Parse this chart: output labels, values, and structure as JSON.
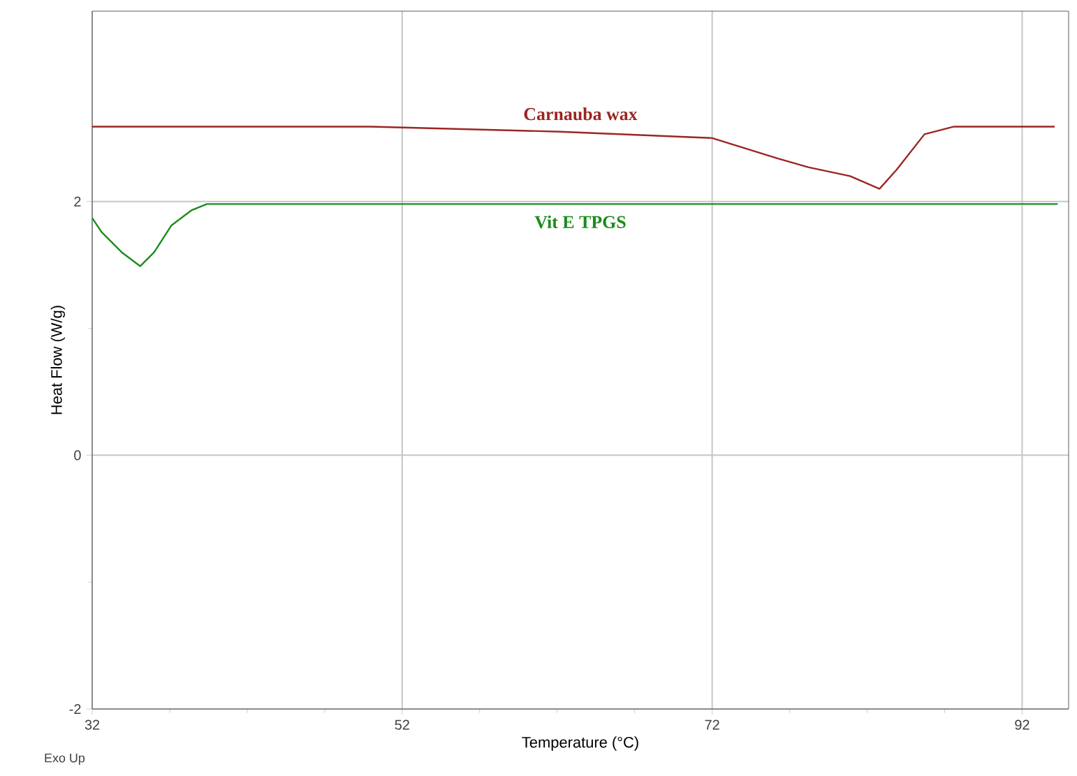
{
  "chart_data": {
    "type": "line",
    "xlabel": "Temperature (°C)",
    "ylabel": "Heat Flow (W/g)",
    "xlim": [
      32,
      95
    ],
    "ylim": [
      -2,
      3.5
    ],
    "xticks": [
      32,
      52,
      72,
      92
    ],
    "yticks": [
      -2,
      0,
      2
    ],
    "grid": true,
    "legend": false,
    "marker": "none",
    "line_style": "solid",
    "annotations": [
      "Exo Up"
    ],
    "series": [
      {
        "name": "Carnauba wax",
        "color": "#9b2525",
        "x": [
          32,
          50,
          62.2,
          72,
          76.2,
          78.2,
          80.9,
          82.8,
          83.9,
          85.7,
          87.6,
          94.1
        ],
        "values": [
          2.59,
          2.59,
          2.55,
          2.5,
          2.34,
          2.27,
          2.2,
          2.1,
          2.25,
          2.53,
          2.59,
          2.59
        ]
      },
      {
        "name": "Vit E TPGS",
        "color": "#1a8c1a",
        "x": [
          32,
          32.6,
          33.9,
          35.1,
          36.0,
          37.1,
          38.4,
          39.4,
          72,
          94.3
        ],
        "values": [
          1.87,
          1.76,
          1.6,
          1.49,
          1.6,
          1.81,
          1.93,
          1.98,
          1.98,
          1.98
        ]
      }
    ]
  }
}
